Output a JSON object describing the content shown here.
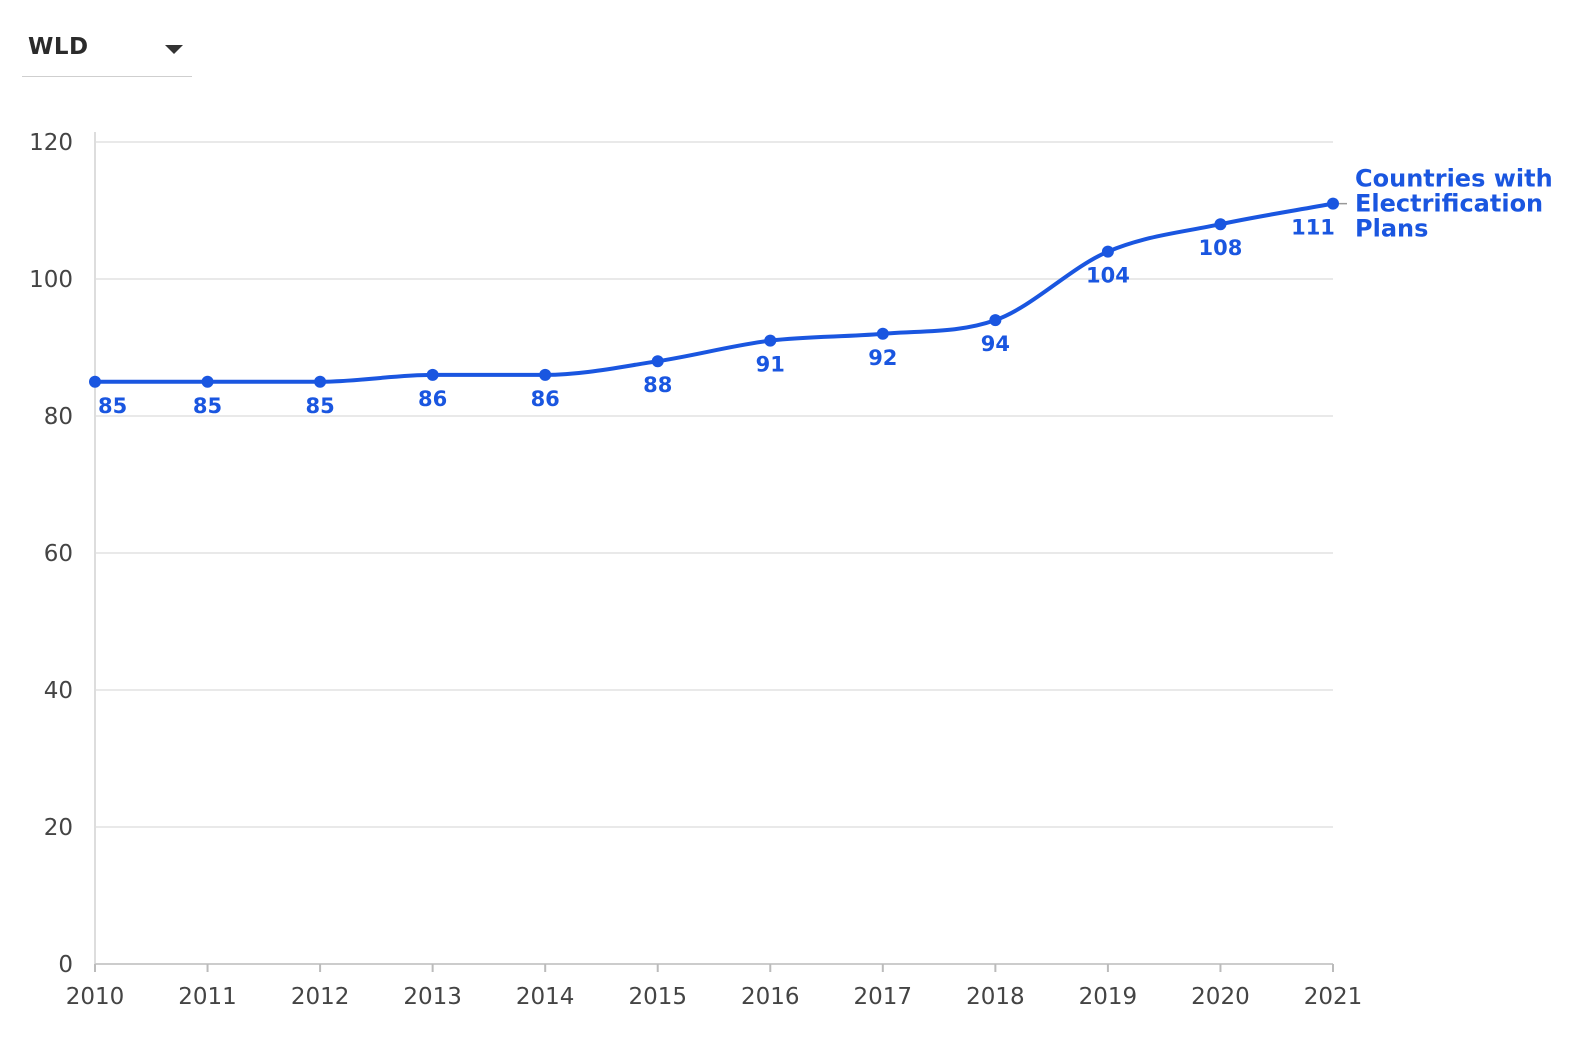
{
  "selector": {
    "selected": "WLD",
    "icon": "chevron-down-icon"
  },
  "chart_data": {
    "type": "line",
    "x": [
      "2010",
      "2011",
      "2012",
      "2013",
      "2014",
      "2015",
      "2016",
      "2017",
      "2018",
      "2019",
      "2020",
      "2021"
    ],
    "series": [
      {
        "name": "Countries with Electrification Plans",
        "name_lines": [
          "Countries with",
          "Electrification",
          "Plans"
        ],
        "values": [
          85,
          85,
          85,
          86,
          86,
          88,
          91,
          92,
          94,
          104,
          108,
          111
        ],
        "color": "#1a56e0"
      }
    ],
    "yticks": [
      0,
      20,
      40,
      60,
      80,
      100,
      120
    ],
    "ylim": [
      0,
      120
    ],
    "grid": true,
    "title": "",
    "xlabel": "",
    "ylabel": "",
    "legend": "inline-end-label"
  }
}
